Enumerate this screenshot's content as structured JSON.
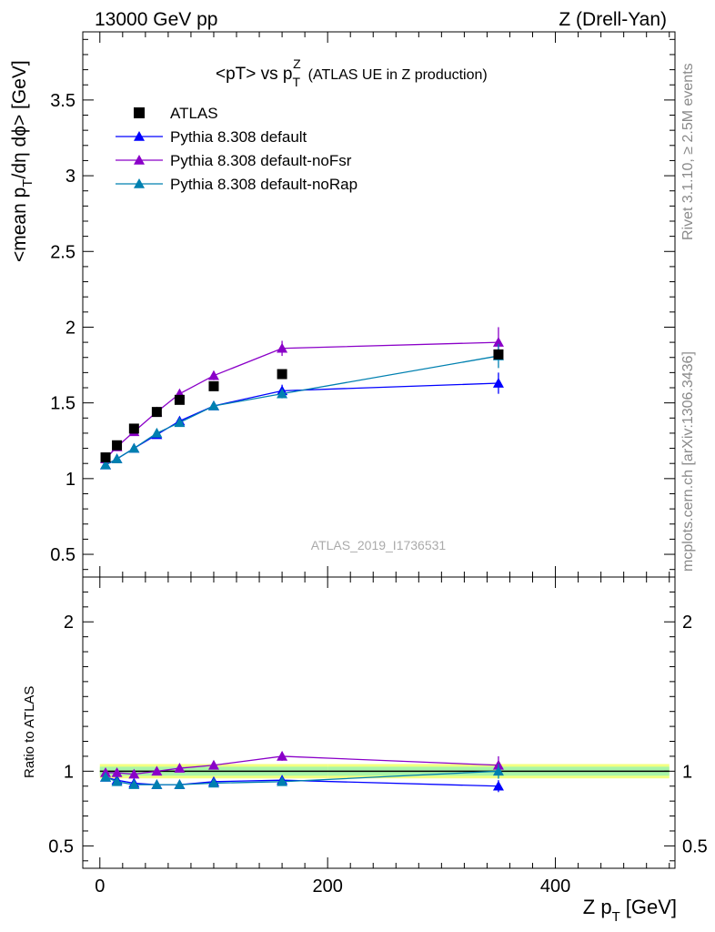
{
  "header": {
    "left": "13000 GeV pp",
    "right": "Z (Drell-Yan)"
  },
  "side_labels": {
    "top": "Rivet 3.1.10, ≥ 2.5M events",
    "bottom": "mcplots.cern.ch [arXiv:1306.3436]"
  },
  "chart_data": {
    "type": "scatter",
    "title": "<pT> vs p_T^Z (ATLAS UE in Z production)",
    "title_main": "<pT> vs p",
    "title_sub": "T",
    "title_sup": "Z",
    "title_rest": "(ATLAS UE in Z production)",
    "watermark": "ATLAS_2019_I1736531",
    "xlabel": "Z p_T [GeV]",
    "xlabel_main": "Z p",
    "xlabel_sub": "T",
    "xlabel_rest": "[GeV]",
    "ylabel": "<mean p_T/dη dϕ> [GeV]",
    "ylabel_a": "<mean p",
    "ylabel_sub": "T",
    "ylabel_b": "/dη dϕ> [GeV]",
    "ratio_ylabel": "Ratio to ATLAS",
    "xlim": [
      -15,
      505
    ],
    "ylim": [
      0.35,
      3.95
    ],
    "ratio_ylim": [
      0.35,
      2.3
    ],
    "x_ticks": [
      "0",
      "200",
      "400"
    ],
    "y_ticks": [
      "0.5",
      "1",
      "1.5",
      "2",
      "2.5",
      "3",
      "3.5"
    ],
    "ratio_y_ticks": [
      "0.5",
      "1",
      "2"
    ],
    "legend_position": "top-left",
    "series": [
      {
        "name": "ATLAS",
        "color": "#000000",
        "marker": "square",
        "x": [
          5,
          15,
          30,
          50,
          70,
          100,
          160,
          350
        ],
        "y": [
          1.14,
          1.22,
          1.33,
          1.44,
          1.52,
          1.61,
          1.69,
          1.82
        ],
        "band_x": [
          0,
          200,
          500
        ],
        "band_err": [
          0.03,
          0.03,
          0.03
        ]
      },
      {
        "name": "Pythia 8.308 default",
        "color": "#0000ff",
        "marker": "triangle",
        "x": [
          5,
          15,
          30,
          50,
          70,
          100,
          160,
          350
        ],
        "y": [
          1.09,
          1.13,
          1.2,
          1.29,
          1.38,
          1.48,
          1.58,
          1.63
        ],
        "err": [
          0.01,
          0.01,
          0.01,
          0.01,
          0.01,
          0.02,
          0.04,
          0.07
        ],
        "ratio": [
          0.96,
          0.94,
          0.92,
          0.91,
          0.91,
          0.93,
          0.94,
          0.9
        ],
        "ratio_err": [
          0.01,
          0.01,
          0.01,
          0.01,
          0.01,
          0.01,
          0.02,
          0.04
        ]
      },
      {
        "name": "Pythia 8.308 default-noFsr",
        "color": "#8a00c8",
        "marker": "triangle",
        "x": [
          5,
          15,
          30,
          50,
          70,
          100,
          160,
          350
        ],
        "y": [
          1.13,
          1.21,
          1.31,
          1.44,
          1.56,
          1.68,
          1.86,
          1.9
        ],
        "err": [
          0.01,
          0.01,
          0.01,
          0.01,
          0.02,
          0.03,
          0.05,
          0.1
        ],
        "ratio": [
          0.99,
          0.99,
          0.98,
          1.0,
          1.02,
          1.04,
          1.1,
          1.04
        ],
        "ratio_err": [
          0.01,
          0.01,
          0.01,
          0.01,
          0.01,
          0.02,
          0.03,
          0.06
        ]
      },
      {
        "name": "Pythia 8.308 default-noRap",
        "color": "#0080b0",
        "marker": "triangle",
        "x": [
          5,
          15,
          30,
          50,
          70,
          100,
          160,
          350
        ],
        "y": [
          1.09,
          1.13,
          1.2,
          1.3,
          1.37,
          1.48,
          1.56,
          1.81
        ],
        "err": [
          0.01,
          0.01,
          0.01,
          0.01,
          0.01,
          0.02,
          0.03,
          0.08
        ],
        "ratio": [
          0.96,
          0.93,
          0.91,
          0.91,
          0.91,
          0.92,
          0.93,
          1.0
        ],
        "ratio_err": [
          0.01,
          0.01,
          0.01,
          0.01,
          0.01,
          0.01,
          0.02,
          0.05
        ]
      }
    ]
  }
}
